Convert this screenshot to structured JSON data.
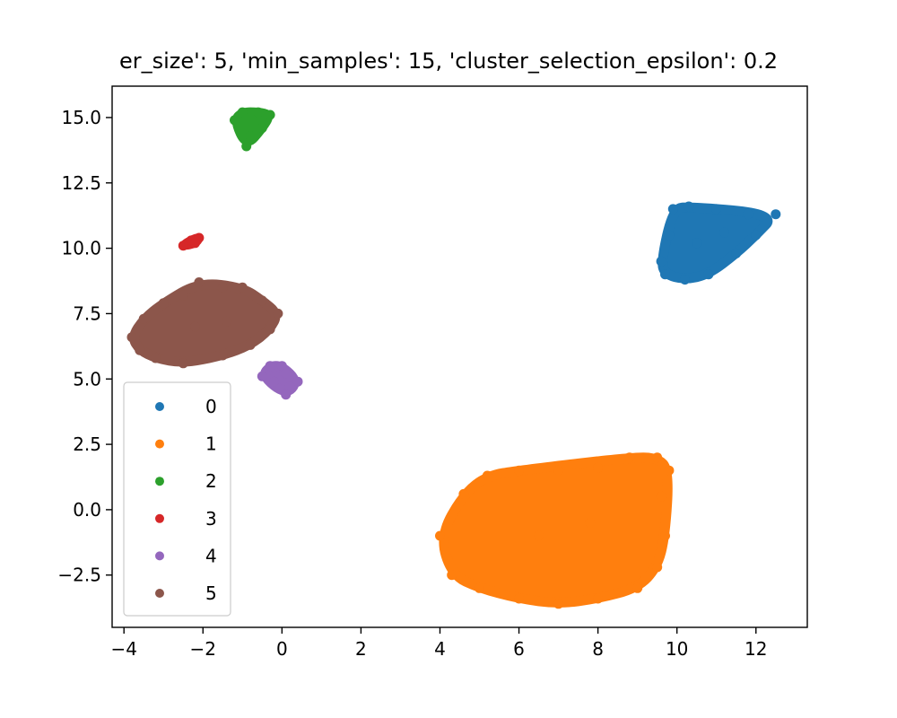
{
  "chart_data": {
    "type": "scatter",
    "title": "er_size': 5, 'min_samples': 15, 'cluster_selection_epsilon': 0.2",
    "xlabel": "",
    "ylabel": "",
    "xlim": [
      -4.3,
      13.3
    ],
    "ylim": [
      -4.5,
      16.2
    ],
    "xticks": [
      -4,
      -2,
      0,
      2,
      4,
      6,
      8,
      10,
      12
    ],
    "yticks": [
      -2.5,
      0.0,
      2.5,
      5.0,
      7.5,
      10.0,
      12.5,
      15.0
    ],
    "xtick_labels": [
      "−4",
      "−2",
      "0",
      "2",
      "4",
      "6",
      "8",
      "10",
      "12"
    ],
    "ytick_labels": [
      "−2.5",
      "0.0",
      "2.5",
      "5.0",
      "7.5",
      "10.0",
      "12.5",
      "15.0"
    ],
    "grid": false,
    "legend_position": "lower-left",
    "series": [
      {
        "name": "0",
        "color": "#1f77b4",
        "points": [
          [
            9.6,
            9.5
          ],
          [
            9.8,
            10.5
          ],
          [
            9.9,
            11.5
          ],
          [
            10.3,
            11.6
          ],
          [
            11.0,
            11.5
          ],
          [
            11.8,
            11.3
          ],
          [
            12.5,
            11.3
          ],
          [
            12.0,
            10.5
          ],
          [
            11.5,
            9.8
          ],
          [
            10.8,
            9.0
          ],
          [
            10.2,
            8.8
          ],
          [
            9.7,
            9.0
          ],
          [
            10.5,
            10.2
          ],
          [
            11.2,
            10.6
          ]
        ]
      },
      {
        "name": "1",
        "color": "#ff7f0e",
        "points": [
          [
            4.0,
            -1.0
          ],
          [
            4.3,
            -2.5
          ],
          [
            5.0,
            -3.0
          ],
          [
            6.0,
            -3.4
          ],
          [
            7.0,
            -3.6
          ],
          [
            8.0,
            -3.4
          ],
          [
            9.0,
            -3.0
          ],
          [
            9.5,
            -2.2
          ],
          [
            9.7,
            -1.0
          ],
          [
            9.6,
            0.5
          ],
          [
            9.8,
            1.5
          ],
          [
            9.5,
            2.0
          ],
          [
            8.8,
            2.0
          ],
          [
            8.0,
            1.6
          ],
          [
            7.0,
            1.5
          ],
          [
            6.0,
            1.5
          ],
          [
            5.2,
            1.3
          ],
          [
            4.6,
            0.6
          ],
          [
            6.5,
            -1.0
          ],
          [
            7.8,
            -0.5
          ]
        ]
      },
      {
        "name": "2",
        "color": "#2ca02c",
        "points": [
          [
            -1.2,
            14.9
          ],
          [
            -1.0,
            15.2
          ],
          [
            -0.6,
            15.2
          ],
          [
            -0.3,
            15.1
          ],
          [
            -0.5,
            14.6
          ],
          [
            -0.8,
            14.3
          ],
          [
            -0.9,
            13.9
          ]
        ]
      },
      {
        "name": "3",
        "color": "#d62728",
        "points": [
          [
            -2.5,
            10.1
          ],
          [
            -2.3,
            10.3
          ],
          [
            -2.1,
            10.4
          ],
          [
            -2.2,
            10.2
          ]
        ]
      },
      {
        "name": "4",
        "color": "#9467bd",
        "points": [
          [
            -0.5,
            5.1
          ],
          [
            -0.3,
            5.5
          ],
          [
            0.0,
            5.5
          ],
          [
            0.1,
            5.2
          ],
          [
            0.4,
            4.9
          ],
          [
            0.2,
            4.7
          ],
          [
            0.1,
            4.4
          ],
          [
            -0.2,
            4.9
          ]
        ]
      },
      {
        "name": "5",
        "color": "#8c564b",
        "points": [
          [
            -3.8,
            6.6
          ],
          [
            -3.5,
            7.3
          ],
          [
            -3.0,
            7.9
          ],
          [
            -2.5,
            8.2
          ],
          [
            -2.1,
            8.7
          ],
          [
            -1.5,
            8.5
          ],
          [
            -1.0,
            8.5
          ],
          [
            -0.5,
            8.0
          ],
          [
            -0.1,
            7.5
          ],
          [
            -0.3,
            6.9
          ],
          [
            -0.8,
            6.3
          ],
          [
            -1.5,
            5.9
          ],
          [
            -2.5,
            5.6
          ],
          [
            -3.2,
            5.8
          ],
          [
            -3.6,
            6.1
          ],
          [
            -2.2,
            7.0
          ],
          [
            -1.4,
            7.2
          ]
        ]
      }
    ]
  }
}
